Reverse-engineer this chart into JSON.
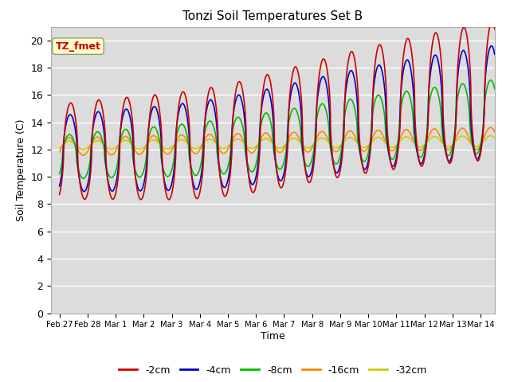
{
  "title": "Tonzi Soil Temperatures Set B",
  "xlabel": "Time",
  "ylabel": "Soil Temperature (C)",
  "annotation": "TZ_fmet",
  "ylim": [
    0,
    21
  ],
  "yticks": [
    0,
    2,
    4,
    6,
    8,
    10,
    12,
    14,
    16,
    18,
    20
  ],
  "series_colors": [
    "#cc0000",
    "#0000cc",
    "#00bb00",
    "#ff8800",
    "#cccc00"
  ],
  "series_labels": [
    "-2cm",
    "-4cm",
    "-8cm",
    "-16cm",
    "-32cm"
  ],
  "plot_bg": "#dcdcdc",
  "fig_bg": "#ffffff",
  "xtick_labels": [
    "Feb 27",
    "Feb 28",
    "Mar 1",
    "Mar 2",
    "Mar 3",
    "Mar 4",
    "Mar 5",
    "Mar 6",
    "Mar 7",
    "Mar 8",
    "Mar 9",
    "Mar 10",
    "Mar 11",
    "Mar 12",
    "Mar 13",
    "Mar 14"
  ],
  "xtick_positions": [
    0,
    1,
    2,
    3,
    4,
    5,
    6,
    7,
    8,
    9,
    10,
    11,
    12,
    13,
    14,
    15
  ],
  "xlim": [
    -0.3,
    15.5
  ],
  "annotation_color": "#cc0000",
  "annotation_bg": "#ffffcc",
  "annotation_edge": "#999966"
}
